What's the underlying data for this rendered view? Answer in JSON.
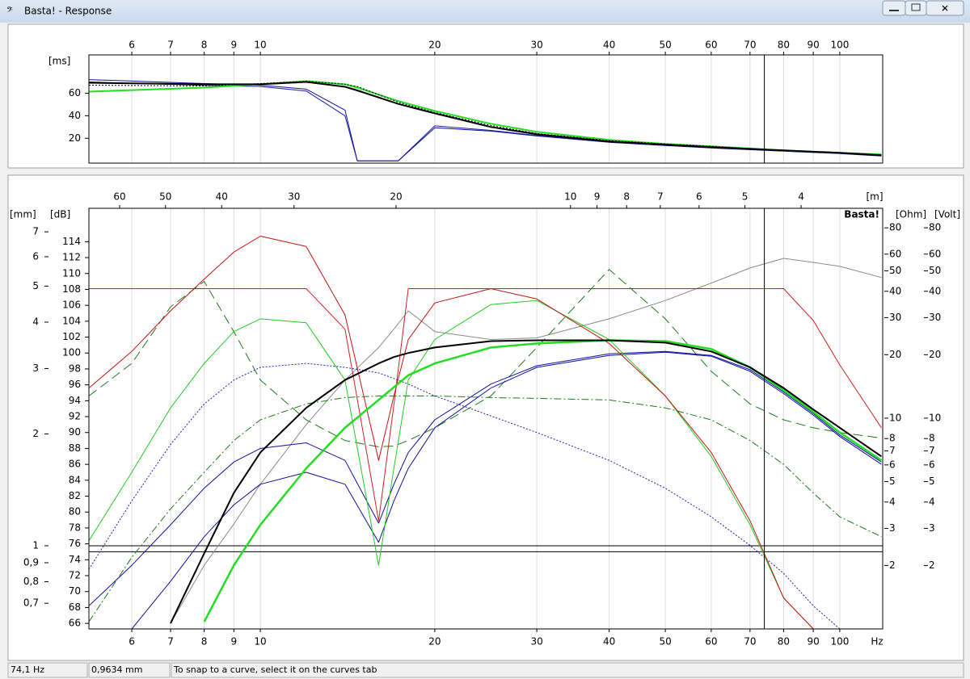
{
  "window": {
    "title": "Basta! - Response"
  },
  "chart_data": [
    {
      "type": "line",
      "log_x": true,
      "y_label": "[ms]",
      "x": [
        5.06,
        8,
        10,
        12,
        14,
        14.7,
        17.3,
        20,
        25,
        30,
        40,
        50,
        60,
        80,
        100,
        118
      ],
      "xlim": [
        5.06,
        118.6
      ],
      "xticks": [
        6,
        7,
        8,
        9,
        10,
        20,
        30,
        40,
        50,
        60,
        70,
        80,
        90,
        100
      ],
      "ylim": [
        -2,
        94
      ],
      "yticks": [
        20,
        40,
        60
      ],
      "series": [
        {
          "color": "#1a1aa8",
          "style": "solid",
          "width": 1,
          "values": [
            70,
            67,
            66,
            62,
            40,
            0,
            0,
            31,
            27,
            22.5,
            16.6,
            13.8,
            11.6,
            8.8,
            6.6,
            4.5
          ]
        },
        {
          "color": "#1010a0",
          "style": "solid",
          "width": 1,
          "values": [
            72.1,
            68.6,
            67.1,
            63.6,
            45,
            0,
            0,
            29.3,
            26.4,
            22.1,
            16.4,
            13.6,
            11.4,
            8.6,
            6.4,
            4.3
          ]
        },
        {
          "color": "#22dd22",
          "style": "solid",
          "width": 2,
          "values": [
            61.4,
            65,
            67.9,
            70.7,
            67.9,
            65,
            53,
            44.3,
            32.9,
            25.7,
            18.6,
            15,
            12.9,
            9.3,
            7.1,
            5.7
          ]
        },
        {
          "color": "#000000",
          "style": "dotted",
          "width": 1,
          "values": [
            67.1,
            66.4,
            68.6,
            70.7,
            67.9,
            66,
            52,
            42.9,
            31.4,
            24.3,
            17.9,
            15,
            12.9,
            9.3,
            7.1,
            5
          ]
        },
        {
          "color": "#000000",
          "style": "solid",
          "width": 2,
          "values": [
            69.3,
            67.9,
            67.9,
            70,
            65.7,
            62.5,
            50.5,
            42.1,
            30,
            23.6,
            17.1,
            14.3,
            12.1,
            9.3,
            7.1,
            5
          ]
        }
      ]
    },
    {
      "type": "line",
      "log_x": true,
      "y_label": "[dB]",
      "x_label": "Hz",
      "watermark": "Basta!",
      "x": [
        5.06,
        6,
        7,
        8,
        9,
        10,
        12,
        14,
        16,
        17,
        18,
        20,
        25,
        30,
        40,
        50,
        60,
        70,
        80,
        90,
        100,
        118
      ],
      "xlim": [
        5.06,
        118.6
      ],
      "xticks": [
        6,
        7,
        8,
        9,
        10,
        20,
        30,
        40,
        50,
        60,
        70,
        80,
        90,
        100
      ],
      "ylim": [
        65.3,
        118.2
      ],
      "yticks": [
        66,
        68,
        70,
        72,
        74,
        76,
        78,
        80,
        82,
        84,
        86,
        88,
        90,
        92,
        94,
        96,
        98,
        100,
        102,
        104,
        106,
        108,
        110,
        112,
        114
      ],
      "wavelength_axis": {
        "label": "[m]",
        "ticks": [
          60,
          50,
          40,
          30,
          20,
          10,
          9,
          8,
          7,
          6,
          5,
          4
        ]
      },
      "mm_axis": {
        "label": "[mm]",
        "lim": [
          0.597,
          8.1
        ],
        "ticks": [
          7,
          6,
          5,
          4,
          3,
          2,
          1,
          {
            "value": 0.9,
            "label": "0,9"
          },
          {
            "value": 0.8,
            "label": "0,8"
          },
          {
            "value": 0.7,
            "label": "0,7"
          }
        ]
      },
      "ohm_axis": {
        "label": "[Ohm]",
        "lim": [
          1,
          99
        ],
        "ticks": [
          80,
          60,
          50,
          40,
          30,
          20,
          10,
          8,
          7,
          6,
          5,
          4,
          3,
          2
        ]
      },
      "volt_axis": {
        "label": "[Volt]",
        "lim": [
          1,
          99
        ],
        "ticks": [
          80,
          60,
          50,
          40,
          30,
          20,
          10,
          8,
          7,
          6,
          5,
          4,
          3,
          2
        ]
      },
      "series": [
        {
          "color": "#8a8a8a",
          "style": "solid",
          "width": 1,
          "values": [
            null,
            null,
            66,
            73.3,
            78.5,
            83.5,
            91,
            96.6,
            100.7,
            103,
            105.3,
            102.7,
            101.7,
            101.9,
            104.3,
            106.6,
            108.8,
            110.7,
            111.9,
            111.4,
            110.9,
            109.5
          ]
        },
        {
          "color": "#d02020",
          "style": "solid",
          "width": 1,
          "values": [
            108.1,
            108.1,
            108.1,
            108.1,
            108.1,
            108.1,
            108.1,
            103,
            78.9,
            93.5,
            108.1,
            108.1,
            108.1,
            108.1,
            108.1,
            108.1,
            108.1,
            108.1,
            108.1,
            104.1,
            98.5,
            90.6
          ]
        },
        {
          "color": "#1e7a1e",
          "style": "dashed",
          "width": 1,
          "values": [
            94.6,
            98.7,
            105.8,
            109,
            102.7,
            96.6,
            91.6,
            89,
            88.2,
            88.3,
            89,
            90.6,
            94.6,
            100.7,
            110.5,
            104.3,
            97.7,
            93.6,
            91.6,
            90.6,
            90,
            89.3
          ]
        },
        {
          "color": "#1e7a1e",
          "style": "dashdot",
          "width": 1,
          "values": [
            66.2,
            74.3,
            80.4,
            85,
            89,
            91.6,
            93.6,
            94.4,
            94.6,
            94.6,
            94.6,
            94.6,
            94.4,
            94.3,
            94.1,
            93.1,
            91.6,
            89,
            86,
            82.4,
            79.4,
            76.9
          ]
        },
        {
          "color": "#2020c0",
          "style": "dotted",
          "width": 1,
          "values": [
            72.8,
            81.4,
            88.5,
            93.6,
            96.6,
            98.2,
            98.7,
            98.2,
            97.5,
            96.8,
            96.1,
            94.6,
            92.1,
            90,
            86.5,
            83,
            79.4,
            75.8,
            72.3,
            68.2,
            65.3,
            null
          ]
        },
        {
          "color": "#1010a0",
          "style": "solid",
          "width": 1,
          "values": [
            68.2,
            73.3,
            78.4,
            83,
            86.3,
            88,
            88.7,
            86.5,
            78.6,
            83.5,
            87.5,
            91.6,
            96.1,
            98.4,
            99.9,
            100.2,
            99.7,
            97.9,
            95.1,
            92.4,
            89.7,
            86.3
          ]
        },
        {
          "color": "#1010a0",
          "style": "solid",
          "width": 1,
          "values": [
            null,
            65.3,
            71.3,
            76.9,
            80.9,
            83.5,
            85,
            83.5,
            76.2,
            81.4,
            85.5,
            90.6,
            95.6,
            98.2,
            99.7,
            100.1,
            99.6,
            97.7,
            94.9,
            92.2,
            89.5,
            86
          ]
        },
        {
          "color": "#22cc22",
          "style": "solid",
          "width": 1,
          "values": [
            76.4,
            85,
            93.1,
            98.7,
            102.7,
            104.3,
            103.8,
            96.6,
            73.3,
            85.5,
            96.6,
            101.7,
            106.1,
            106.6,
            101.7,
            94.6,
            87,
            78.4,
            69.2,
            65.3,
            null,
            null
          ]
        },
        {
          "color": "#cc1111",
          "style": "solid",
          "width": 1,
          "values": [
            95.6,
            100.2,
            105.3,
            109.3,
            112.7,
            114.7,
            113.4,
            104.8,
            86.5,
            94.6,
            101.7,
            106.3,
            108.1,
            106.8,
            101.2,
            94.6,
            87.5,
            78.9,
            69.2,
            65.3,
            null,
            null
          ]
        },
        {
          "color": "#22dd22",
          "style": "solid",
          "width": 2.5,
          "values": [
            null,
            null,
            null,
            66.2,
            73.3,
            78.4,
            85.5,
            90.6,
            94.1,
            95.7,
            97.2,
            98.7,
            100.7,
            101.2,
            101.6,
            101.5,
            100.5,
            98.2,
            95.3,
            92.6,
            90,
            86.5
          ]
        },
        {
          "color": "#000000",
          "style": "solid",
          "width": 2,
          "values": [
            null,
            null,
            66,
            74.8,
            82.4,
            87.5,
            93.1,
            96.6,
            98.7,
            99.5,
            100,
            100.7,
            101.5,
            101.6,
            101.6,
            101.3,
            100.2,
            98.2,
            95.6,
            92.9,
            90.6,
            87
          ]
        }
      ]
    }
  ],
  "status_bar": {
    "cursor_x": {
      "value": 74.1,
      "label": "74,1 Hz"
    },
    "cursor_y": {
      "value": 0.9634,
      "label": "0,9634 mm"
    },
    "hint": "To snap to a curve, select it on the curves tab"
  }
}
